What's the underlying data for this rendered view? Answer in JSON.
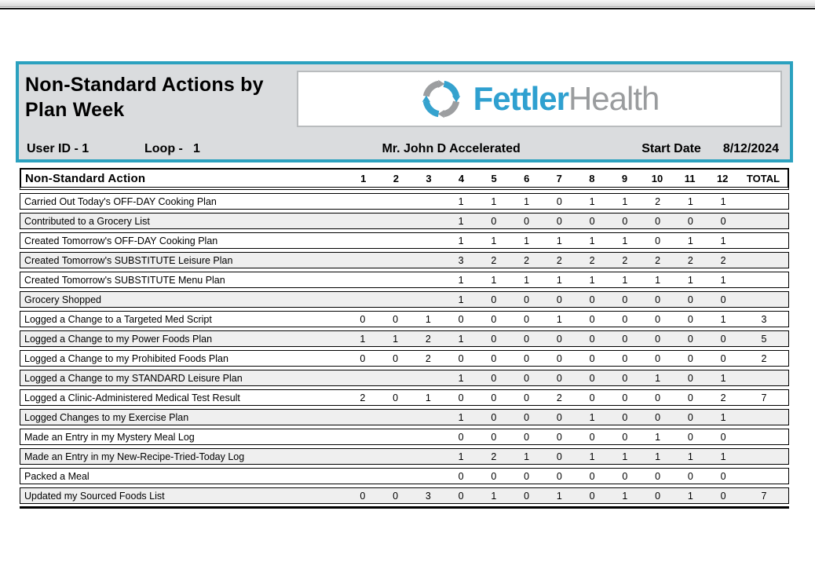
{
  "report": {
    "title_line1": "Non-Standard Actions by",
    "title_line2": "Plan Week",
    "logo": {
      "brand_primary": "Fettler",
      "brand_secondary": "Health"
    },
    "info": {
      "user_id_label": "User ID - 1",
      "loop_label": "Loop -",
      "loop_value": "1",
      "patient_name": "Mr. John D Accelerated",
      "start_date_label": "Start Date",
      "start_date_value": "8/12/2024"
    }
  },
  "table": {
    "action_header": "Non-Standard Action",
    "week_headers": [
      "1",
      "2",
      "3",
      "4",
      "5",
      "6",
      "7",
      "8",
      "9",
      "10",
      "11",
      "12",
      "TOTAL"
    ],
    "rows": [
      {
        "label": "Carried Out Today's OFF-DAY Cooking Plan",
        "values": [
          "",
          "",
          "",
          "1",
          "1",
          "1",
          "0",
          "1",
          "1",
          "2",
          "1",
          "1",
          ""
        ]
      },
      {
        "label": "Contributed to a Grocery List",
        "values": [
          "",
          "",
          "",
          "1",
          "0",
          "0",
          "0",
          "0",
          "0",
          "0",
          "0",
          "0",
          ""
        ]
      },
      {
        "label": "Created Tomorrow's OFF-DAY Cooking Plan",
        "values": [
          "",
          "",
          "",
          "1",
          "1",
          "1",
          "1",
          "1",
          "1",
          "0",
          "1",
          "1",
          ""
        ]
      },
      {
        "label": "Created Tomorrow's SUBSTITUTE Leisure Plan",
        "values": [
          "",
          "",
          "",
          "3",
          "2",
          "2",
          "2",
          "2",
          "2",
          "2",
          "2",
          "2",
          ""
        ]
      },
      {
        "label": "Created Tomorrow's SUBSTITUTE Menu Plan",
        "values": [
          "",
          "",
          "",
          "1",
          "1",
          "1",
          "1",
          "1",
          "1",
          "1",
          "1",
          "1",
          ""
        ]
      },
      {
        "label": "Grocery Shopped",
        "values": [
          "",
          "",
          "",
          "1",
          "0",
          "0",
          "0",
          "0",
          "0",
          "0",
          "0",
          "0",
          ""
        ]
      },
      {
        "label": "Logged a Change to a Targeted Med Script",
        "values": [
          "0",
          "0",
          "1",
          "0",
          "0",
          "0",
          "1",
          "0",
          "0",
          "0",
          "0",
          "1",
          "3"
        ]
      },
      {
        "label": "Logged a Change to my Power Foods Plan",
        "values": [
          "1",
          "1",
          "2",
          "1",
          "0",
          "0",
          "0",
          "0",
          "0",
          "0",
          "0",
          "0",
          "5"
        ]
      },
      {
        "label": "Logged a Change to my Prohibited Foods Plan",
        "values": [
          "0",
          "0",
          "2",
          "0",
          "0",
          "0",
          "0",
          "0",
          "0",
          "0",
          "0",
          "0",
          "2"
        ]
      },
      {
        "label": "Logged a Change to my STANDARD Leisure Plan",
        "values": [
          "",
          "",
          "",
          "1",
          "0",
          "0",
          "0",
          "0",
          "0",
          "1",
          "0",
          "1",
          ""
        ]
      },
      {
        "label": "Logged a Clinic-Administered Medical Test Result",
        "values": [
          "2",
          "0",
          "1",
          "0",
          "0",
          "0",
          "2",
          "0",
          "0",
          "0",
          "0",
          "2",
          "7"
        ]
      },
      {
        "label": "Logged Changes to my Exercise Plan",
        "values": [
          "",
          "",
          "",
          "1",
          "0",
          "0",
          "0",
          "1",
          "0",
          "0",
          "0",
          "1",
          ""
        ]
      },
      {
        "label": "Made an Entry in my Mystery Meal Log",
        "values": [
          "",
          "",
          "",
          "0",
          "0",
          "0",
          "0",
          "0",
          "0",
          "1",
          "0",
          "0",
          ""
        ]
      },
      {
        "label": "Made an Entry in my New-Recipe-Tried-Today Log",
        "values": [
          "",
          "",
          "",
          "1",
          "2",
          "1",
          "0",
          "1",
          "1",
          "1",
          "1",
          "1",
          ""
        ]
      },
      {
        "label": "Packed a Meal",
        "values": [
          "",
          "",
          "",
          "0",
          "0",
          "0",
          "0",
          "0",
          "0",
          "0",
          "0",
          "0",
          ""
        ]
      },
      {
        "label": "Updated my Sourced Foods List",
        "values": [
          "0",
          "0",
          "3",
          "0",
          "1",
          "0",
          "1",
          "0",
          "1",
          "0",
          "1",
          "0",
          "7"
        ]
      }
    ]
  },
  "colors": {
    "accent_teal": "#2BA1BF",
    "logo_blue": "#2FA0D0",
    "logo_gray": "#9A9C9E"
  }
}
